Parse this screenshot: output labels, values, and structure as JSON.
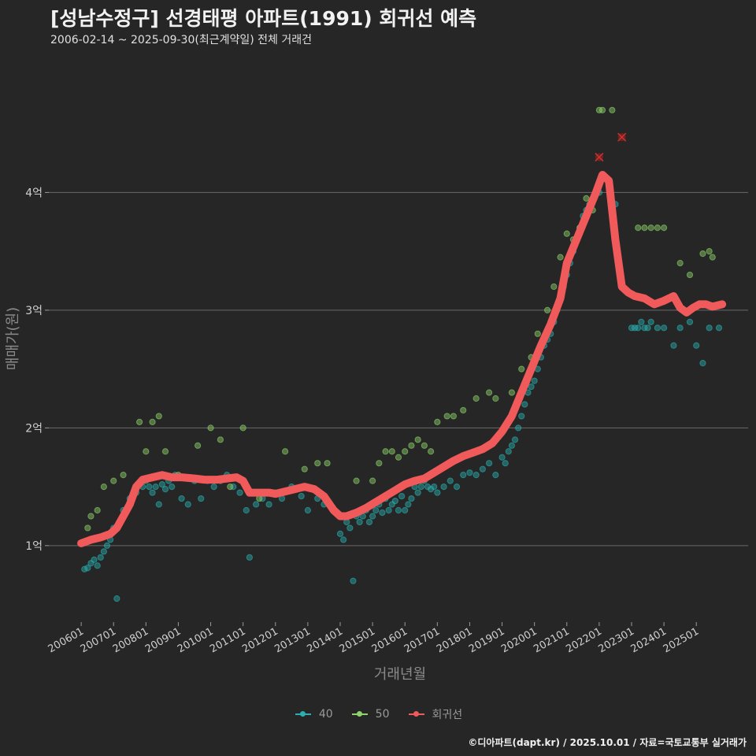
{
  "header": {
    "title": "[성남수정구] 선경태평 아파트(1991) 회귀선 예측",
    "subtitle": "2006-02-14 ~ 2025-09-30(최근계약일) 전체 거래건"
  },
  "footer": {
    "credit": "©디아파트(dapt.kr) / 2025.10.01 / 자료=국토교통부 실거래가"
  },
  "legend": [
    {
      "label": "40",
      "color": "#2ab0b0"
    },
    {
      "label": "50",
      "color": "#8fd46a"
    },
    {
      "label": "회귀선",
      "color": "#f05a5a"
    }
  ],
  "chart_data": {
    "type": "scatter",
    "title": "[성남수정구] 선경태평 아파트(1991) 회귀선 예측",
    "xlabel": "거래년월",
    "ylabel": "매매가(원)",
    "x_ticks": [
      "200601",
      "200701",
      "200801",
      "200901",
      "201001",
      "201101",
      "201201",
      "201301",
      "201401",
      "201501",
      "201601",
      "201701",
      "201801",
      "201901",
      "202001",
      "202101",
      "202201",
      "202301",
      "202401",
      "202501"
    ],
    "y_ticks": [
      {
        "value": 1,
        "label": "1억"
      },
      {
        "value": 2,
        "label": "2억"
      },
      {
        "value": 3,
        "label": "3억"
      },
      {
        "value": 4,
        "label": "4억"
      }
    ],
    "ylim": [
      0.35,
      5.1
    ],
    "xlim": [
      2005.0,
      2026.6
    ],
    "grid": "horizontal",
    "legend_position": "bottom",
    "series": [
      {
        "name": "40",
        "color": "#2ab0b0",
        "points": [
          [
            2006.1,
            0.8
          ],
          [
            2006.2,
            0.81
          ],
          [
            2006.3,
            0.85
          ],
          [
            2006.4,
            0.88
          ],
          [
            2006.5,
            0.83
          ],
          [
            2006.6,
            0.9
          ],
          [
            2006.7,
            0.95
          ],
          [
            2006.8,
            1.0
          ],
          [
            2006.9,
            1.05
          ],
          [
            2007.0,
            1.15
          ],
          [
            2007.1,
            0.55
          ],
          [
            2007.2,
            1.2
          ],
          [
            2007.3,
            1.3
          ],
          [
            2007.5,
            1.4
          ],
          [
            2007.7,
            1.45
          ],
          [
            2007.9,
            1.5
          ],
          [
            2008.0,
            1.55
          ],
          [
            2008.1,
            1.5
          ],
          [
            2008.2,
            1.45
          ],
          [
            2008.3,
            1.5
          ],
          [
            2008.4,
            1.35
          ],
          [
            2008.5,
            1.52
          ],
          [
            2008.6,
            1.48
          ],
          [
            2008.7,
            1.55
          ],
          [
            2008.8,
            1.5
          ],
          [
            2008.9,
            1.6
          ],
          [
            2009.1,
            1.4
          ],
          [
            2009.3,
            1.35
          ],
          [
            2009.5,
            1.55
          ],
          [
            2009.7,
            1.4
          ],
          [
            2009.9,
            1.55
          ],
          [
            2010.1,
            1.5
          ],
          [
            2010.3,
            1.55
          ],
          [
            2010.5,
            1.6
          ],
          [
            2010.7,
            1.5
          ],
          [
            2010.9,
            1.45
          ],
          [
            2011.1,
            1.3
          ],
          [
            2011.2,
            0.9
          ],
          [
            2011.4,
            1.35
          ],
          [
            2011.6,
            1.4
          ],
          [
            2011.8,
            1.35
          ],
          [
            2012.0,
            1.45
          ],
          [
            2012.2,
            1.4
          ],
          [
            2012.5,
            1.5
          ],
          [
            2012.8,
            1.42
          ],
          [
            2013.0,
            1.3
          ],
          [
            2013.3,
            1.4
          ],
          [
            2013.5,
            1.35
          ],
          [
            2013.8,
            1.3
          ],
          [
            2014.0,
            1.1
          ],
          [
            2014.1,
            1.05
          ],
          [
            2014.2,
            1.2
          ],
          [
            2014.3,
            1.15
          ],
          [
            2014.4,
            0.7
          ],
          [
            2014.5,
            1.25
          ],
          [
            2014.6,
            1.2
          ],
          [
            2014.7,
            1.25
          ],
          [
            2014.8,
            1.3
          ],
          [
            2014.9,
            1.2
          ],
          [
            2015.0,
            1.25
          ],
          [
            2015.1,
            1.3
          ],
          [
            2015.2,
            1.35
          ],
          [
            2015.3,
            1.28
          ],
          [
            2015.4,
            1.4
          ],
          [
            2015.5,
            1.3
          ],
          [
            2015.6,
            1.35
          ],
          [
            2015.7,
            1.38
          ],
          [
            2015.8,
            1.3
          ],
          [
            2015.9,
            1.42
          ],
          [
            2016.0,
            1.3
          ],
          [
            2016.1,
            1.35
          ],
          [
            2016.2,
            1.4
          ],
          [
            2016.3,
            1.5
          ],
          [
            2016.4,
            1.45
          ],
          [
            2016.5,
            1.5
          ],
          [
            2016.6,
            1.55
          ],
          [
            2016.7,
            1.5
          ],
          [
            2016.8,
            1.48
          ],
          [
            2016.9,
            1.5
          ],
          [
            2017.0,
            1.45
          ],
          [
            2017.2,
            1.5
          ],
          [
            2017.4,
            1.55
          ],
          [
            2017.6,
            1.5
          ],
          [
            2017.8,
            1.6
          ],
          [
            2018.0,
            1.62
          ],
          [
            2018.2,
            1.6
          ],
          [
            2018.4,
            1.65
          ],
          [
            2018.6,
            1.7
          ],
          [
            2018.8,
            1.6
          ],
          [
            2019.0,
            1.75
          ],
          [
            2019.1,
            1.7
          ],
          [
            2019.2,
            1.8
          ],
          [
            2019.3,
            1.85
          ],
          [
            2019.4,
            1.9
          ],
          [
            2019.5,
            2.0
          ],
          [
            2019.6,
            2.1
          ],
          [
            2019.7,
            2.2
          ],
          [
            2019.8,
            2.3
          ],
          [
            2019.9,
            2.35
          ],
          [
            2020.0,
            2.4
          ],
          [
            2020.1,
            2.5
          ],
          [
            2020.2,
            2.6
          ],
          [
            2020.3,
            2.7
          ],
          [
            2020.4,
            2.75
          ],
          [
            2020.5,
            2.8
          ],
          [
            2020.6,
            2.9
          ],
          [
            2020.7,
            3.0
          ],
          [
            2020.8,
            3.1
          ],
          [
            2020.9,
            3.2
          ],
          [
            2021.0,
            3.3
          ],
          [
            2021.1,
            3.4
          ],
          [
            2021.2,
            3.5
          ],
          [
            2021.3,
            3.6
          ],
          [
            2021.4,
            3.7
          ],
          [
            2021.5,
            3.8
          ],
          [
            2021.6,
            3.85
          ],
          [
            2021.7,
            3.9
          ],
          [
            2022.0,
            4.0
          ],
          [
            2022.5,
            3.9
          ],
          [
            2023.0,
            2.85
          ],
          [
            2023.1,
            2.85
          ],
          [
            2023.2,
            2.85
          ],
          [
            2023.3,
            2.9
          ],
          [
            2023.4,
            2.85
          ],
          [
            2023.5,
            2.85
          ],
          [
            2023.6,
            2.9
          ],
          [
            2023.8,
            2.85
          ],
          [
            2024.0,
            2.85
          ],
          [
            2024.3,
            2.7
          ],
          [
            2024.5,
            2.85
          ],
          [
            2024.8,
            2.9
          ],
          [
            2025.0,
            2.7
          ],
          [
            2025.2,
            2.55
          ],
          [
            2025.4,
            2.85
          ],
          [
            2025.7,
            2.85
          ]
        ]
      },
      {
        "name": "50",
        "color": "#8fd46a",
        "points": [
          [
            2006.2,
            1.15
          ],
          [
            2006.3,
            1.25
          ],
          [
            2006.5,
            1.3
          ],
          [
            2006.7,
            1.5
          ],
          [
            2007.0,
            1.55
          ],
          [
            2007.3,
            1.6
          ],
          [
            2007.8,
            2.05
          ],
          [
            2008.0,
            1.8
          ],
          [
            2008.2,
            2.05
          ],
          [
            2008.4,
            2.1
          ],
          [
            2008.6,
            1.8
          ],
          [
            2009.0,
            1.6
          ],
          [
            2009.6,
            1.85
          ],
          [
            2010.0,
            2.0
          ],
          [
            2010.3,
            1.9
          ],
          [
            2010.6,
            1.5
          ],
          [
            2011.0,
            2.0
          ],
          [
            2011.5,
            1.4
          ],
          [
            2012.3,
            1.8
          ],
          [
            2012.9,
            1.65
          ],
          [
            2013.3,
            1.7
          ],
          [
            2013.6,
            1.7
          ],
          [
            2014.5,
            1.55
          ],
          [
            2015.0,
            1.55
          ],
          [
            2015.2,
            1.7
          ],
          [
            2015.4,
            1.8
          ],
          [
            2015.6,
            1.8
          ],
          [
            2015.8,
            1.75
          ],
          [
            2016.0,
            1.8
          ],
          [
            2016.2,
            1.85
          ],
          [
            2016.4,
            1.9
          ],
          [
            2016.6,
            1.85
          ],
          [
            2016.8,
            1.8
          ],
          [
            2017.0,
            2.05
          ],
          [
            2017.3,
            2.1
          ],
          [
            2017.5,
            2.1
          ],
          [
            2017.8,
            2.15
          ],
          [
            2018.2,
            2.25
          ],
          [
            2018.6,
            2.3
          ],
          [
            2018.8,
            2.25
          ],
          [
            2019.3,
            2.3
          ],
          [
            2019.6,
            2.5
          ],
          [
            2019.9,
            2.6
          ],
          [
            2020.1,
            2.8
          ],
          [
            2020.4,
            3.0
          ],
          [
            2020.6,
            3.2
          ],
          [
            2020.8,
            3.45
          ],
          [
            2021.0,
            3.65
          ],
          [
            2021.2,
            3.6
          ],
          [
            2021.4,
            3.7
          ],
          [
            2021.5,
            3.75
          ],
          [
            2021.6,
            3.95
          ],
          [
            2021.8,
            3.85
          ],
          [
            2022.0,
            4.7
          ],
          [
            2022.1,
            4.7
          ],
          [
            2022.4,
            4.7
          ],
          [
            2023.2,
            3.7
          ],
          [
            2023.4,
            3.7
          ],
          [
            2023.6,
            3.7
          ],
          [
            2023.8,
            3.7
          ],
          [
            2024.0,
            3.7
          ],
          [
            2024.5,
            3.4
          ],
          [
            2024.8,
            3.3
          ],
          [
            2025.2,
            3.48
          ],
          [
            2025.4,
            3.5
          ],
          [
            2025.5,
            3.45
          ]
        ]
      },
      {
        "name": "회귀선",
        "color": "#f05a5a",
        "points": [
          [
            2006.0,
            1.02
          ],
          [
            2006.3,
            1.05
          ],
          [
            2006.6,
            1.07
          ],
          [
            2006.9,
            1.1
          ],
          [
            2007.1,
            1.15
          ],
          [
            2007.3,
            1.25
          ],
          [
            2007.5,
            1.35
          ],
          [
            2007.7,
            1.5
          ],
          [
            2007.9,
            1.56
          ],
          [
            2008.2,
            1.58
          ],
          [
            2008.5,
            1.6
          ],
          [
            2008.8,
            1.58
          ],
          [
            2009.1,
            1.58
          ],
          [
            2009.5,
            1.57
          ],
          [
            2009.8,
            1.56
          ],
          [
            2010.2,
            1.56
          ],
          [
            2010.5,
            1.57
          ],
          [
            2010.8,
            1.58
          ],
          [
            2011.0,
            1.55
          ],
          [
            2011.2,
            1.45
          ],
          [
            2011.5,
            1.45
          ],
          [
            2011.8,
            1.45
          ],
          [
            2012.0,
            1.44
          ],
          [
            2012.3,
            1.46
          ],
          [
            2012.6,
            1.48
          ],
          [
            2012.9,
            1.5
          ],
          [
            2013.2,
            1.48
          ],
          [
            2013.5,
            1.42
          ],
          [
            2013.8,
            1.3
          ],
          [
            2014.0,
            1.25
          ],
          [
            2014.2,
            1.25
          ],
          [
            2014.5,
            1.28
          ],
          [
            2014.8,
            1.32
          ],
          [
            2015.1,
            1.37
          ],
          [
            2015.4,
            1.42
          ],
          [
            2015.7,
            1.47
          ],
          [
            2016.0,
            1.52
          ],
          [
            2016.3,
            1.55
          ],
          [
            2016.6,
            1.57
          ],
          [
            2016.9,
            1.62
          ],
          [
            2017.2,
            1.67
          ],
          [
            2017.5,
            1.72
          ],
          [
            2017.8,
            1.76
          ],
          [
            2018.1,
            1.79
          ],
          [
            2018.4,
            1.82
          ],
          [
            2018.7,
            1.87
          ],
          [
            2019.0,
            1.97
          ],
          [
            2019.3,
            2.1
          ],
          [
            2019.6,
            2.3
          ],
          [
            2019.9,
            2.5
          ],
          [
            2020.2,
            2.7
          ],
          [
            2020.5,
            2.88
          ],
          [
            2020.8,
            3.1
          ],
          [
            2021.0,
            3.4
          ],
          [
            2021.3,
            3.6
          ],
          [
            2021.6,
            3.8
          ],
          [
            2021.9,
            4.0
          ],
          [
            2022.1,
            4.15
          ],
          [
            2022.3,
            4.1
          ],
          [
            2022.5,
            3.6
          ],
          [
            2022.7,
            3.2
          ],
          [
            2022.9,
            3.15
          ],
          [
            2023.1,
            3.12
          ],
          [
            2023.4,
            3.1
          ],
          [
            2023.7,
            3.05
          ],
          [
            2024.0,
            3.08
          ],
          [
            2024.3,
            3.12
          ],
          [
            2024.5,
            3.02
          ],
          [
            2024.7,
            2.98
          ],
          [
            2024.9,
            3.02
          ],
          [
            2025.1,
            3.05
          ],
          [
            2025.3,
            3.05
          ],
          [
            2025.5,
            3.03
          ],
          [
            2025.8,
            3.05
          ]
        ]
      }
    ],
    "outliers": [
      [
        2022.0,
        4.3
      ],
      [
        2022.7,
        4.47
      ]
    ]
  }
}
